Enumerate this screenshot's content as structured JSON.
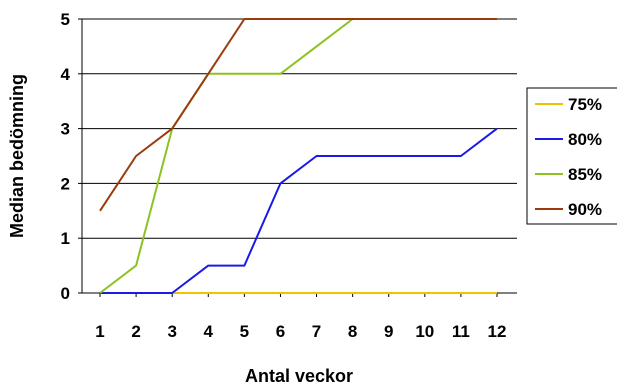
{
  "chart_data": {
    "type": "line",
    "title": "",
    "xlabel": "Antal veckor",
    "ylabel": "Median bedömning",
    "x": [
      1,
      2,
      3,
      4,
      5,
      6,
      7,
      8,
      9,
      10,
      11,
      12
    ],
    "x_tick_labels": [
      "1",
      "2",
      "3",
      "4",
      "5",
      "6",
      "7",
      "8",
      "9",
      "10",
      "11",
      "12"
    ],
    "y_tick_labels": [
      "0",
      "1",
      "2",
      "3",
      "4",
      "5"
    ],
    "ylim": [
      0,
      5
    ],
    "grid": "horizontal",
    "legend_position": "right",
    "series": [
      {
        "name": "75%",
        "color": "#F2C100",
        "values": [
          0,
          0,
          0,
          0,
          0,
          0,
          0,
          0,
          0,
          0,
          0,
          0
        ]
      },
      {
        "name": "80%",
        "color": "#1A1AE6",
        "values": [
          0,
          0,
          0,
          0.5,
          0.5,
          2,
          2.5,
          2.5,
          2.5,
          2.5,
          2.5,
          3
        ]
      },
      {
        "name": "85%",
        "color": "#8DC21F",
        "values": [
          0,
          0.5,
          3,
          4,
          4,
          4,
          4.5,
          5,
          5,
          5,
          5,
          5
        ]
      },
      {
        "name": "90%",
        "color": "#9A3B0C",
        "values": [
          1.5,
          2.5,
          3,
          4,
          5,
          5,
          5,
          5,
          5,
          5,
          5,
          5
        ]
      }
    ]
  }
}
